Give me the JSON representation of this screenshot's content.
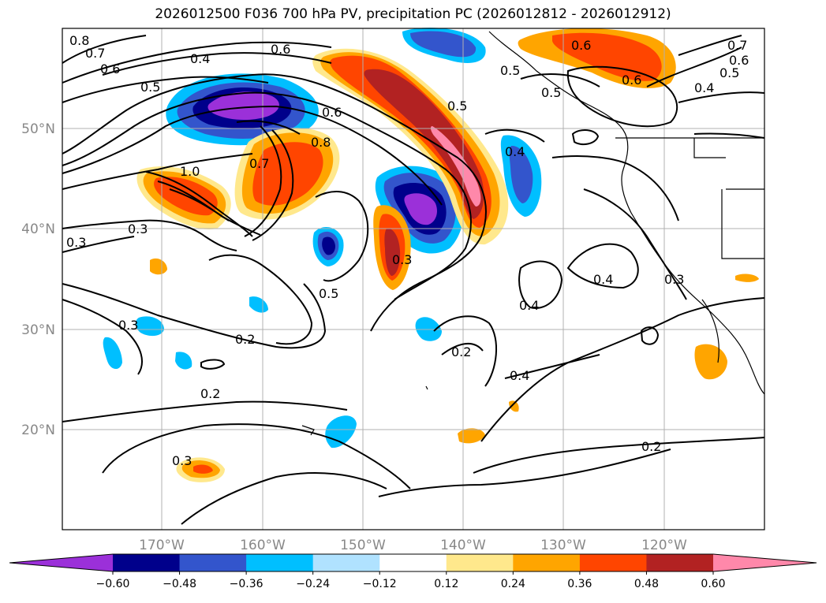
{
  "title": "2026012500 F036 700 hPa PV, precipitation PC (2026012812 - 2026012912)",
  "map": {
    "lon_ticks": [
      "170°W",
      "160°W",
      "150°W",
      "140°W",
      "130°W",
      "120°W"
    ],
    "lat_ticks": [
      "50°N",
      "40°N",
      "30°N",
      "20°N"
    ],
    "gridlines": true,
    "contour_labels": [
      "0.8",
      "0.7",
      "0.6",
      "0.5",
      "0.4",
      "0.6",
      "0.5",
      "0.6",
      "0.8",
      "0.7",
      "1.0",
      "0.3",
      "0.3",
      "0.5",
      "0.3",
      "0.2",
      "0.2",
      "0.3",
      "0.3",
      "0.2",
      "0.4",
      "0.4",
      "0.2",
      "0.6",
      "0.6",
      "0.5",
      "0.7",
      "0.6",
      "0.5",
      "0.4",
      "0.5",
      "0.4",
      "0.4",
      "0.3"
    ]
  },
  "colorbar": {
    "ticks": [
      "−0.60",
      "−0.48",
      "−0.36",
      "−0.24",
      "−0.12",
      "0.12",
      "0.24",
      "0.36",
      "0.48",
      "0.60"
    ],
    "colors": [
      "#9b30d9",
      "#00008b",
      "#3355cc",
      "#00bfff",
      "#b0e2ff",
      "#ffffff",
      "#ffe88c",
      "#ffa500",
      "#ff4500",
      "#b22222",
      "#ff88aa"
    ]
  }
}
